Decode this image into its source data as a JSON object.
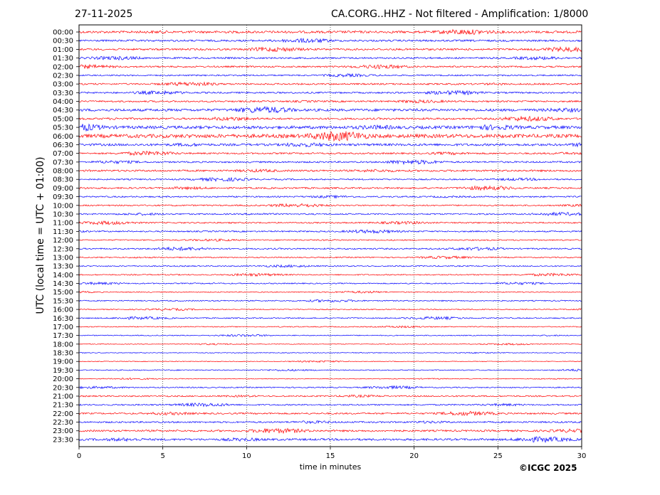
{
  "header": {
    "date": "27-11-2025",
    "station_info": "CA.CORG..HHZ - Not filtered - Amplification: 1/8000"
  },
  "footer": {
    "copyright": "©ICGC 2025"
  },
  "chart_data": {
    "type": "line",
    "title": "CA.CORG..HHZ - Not filtered - Amplification: 1/8000",
    "xlabel": "time in minutes",
    "ylabel": "UTC (local time = UTC + 01:00)",
    "xlim": [
      0,
      30
    ],
    "x_ticks": [
      0,
      5,
      10,
      15,
      20,
      25,
      30
    ],
    "grid": "vertical dotted at each x tick",
    "row_labels": [
      "00:00",
      "00:30",
      "01:00",
      "01:30",
      "02:00",
      "02:30",
      "03:00",
      "03:30",
      "04:00",
      "04:30",
      "05:00",
      "05:30",
      "06:00",
      "06:30",
      "07:00",
      "07:30",
      "08:00",
      "08:30",
      "09:00",
      "09:30",
      "10:00",
      "10:30",
      "11:00",
      "11:30",
      "12:00",
      "12:30",
      "13:00",
      "13:30",
      "14:00",
      "14:30",
      "15:00",
      "15:30",
      "16:00",
      "16:30",
      "17:00",
      "17:30",
      "18:00",
      "18:30",
      "19:00",
      "19:30",
      "20:00",
      "20:30",
      "21:00",
      "21:30",
      "22:00",
      "22:30",
      "23:00",
      "23:30"
    ],
    "row_amplitude": [
      1.0,
      0.8,
      0.8,
      0.7,
      0.7,
      0.6,
      0.7,
      0.7,
      0.7,
      1.1,
      0.8,
      1.3,
      1.6,
      1.0,
      0.7,
      0.7,
      0.8,
      0.6,
      0.7,
      0.6,
      0.6,
      0.6,
      0.6,
      0.6,
      0.5,
      0.6,
      0.5,
      0.5,
      0.5,
      0.5,
      0.4,
      0.5,
      0.4,
      0.5,
      0.4,
      0.4,
      0.3,
      0.3,
      0.3,
      0.4,
      0.3,
      0.5,
      0.6,
      0.6,
      0.7,
      0.7,
      0.8,
      0.9
    ],
    "series_colors": [
      "#ff0000",
      "#0000ff"
    ]
  }
}
